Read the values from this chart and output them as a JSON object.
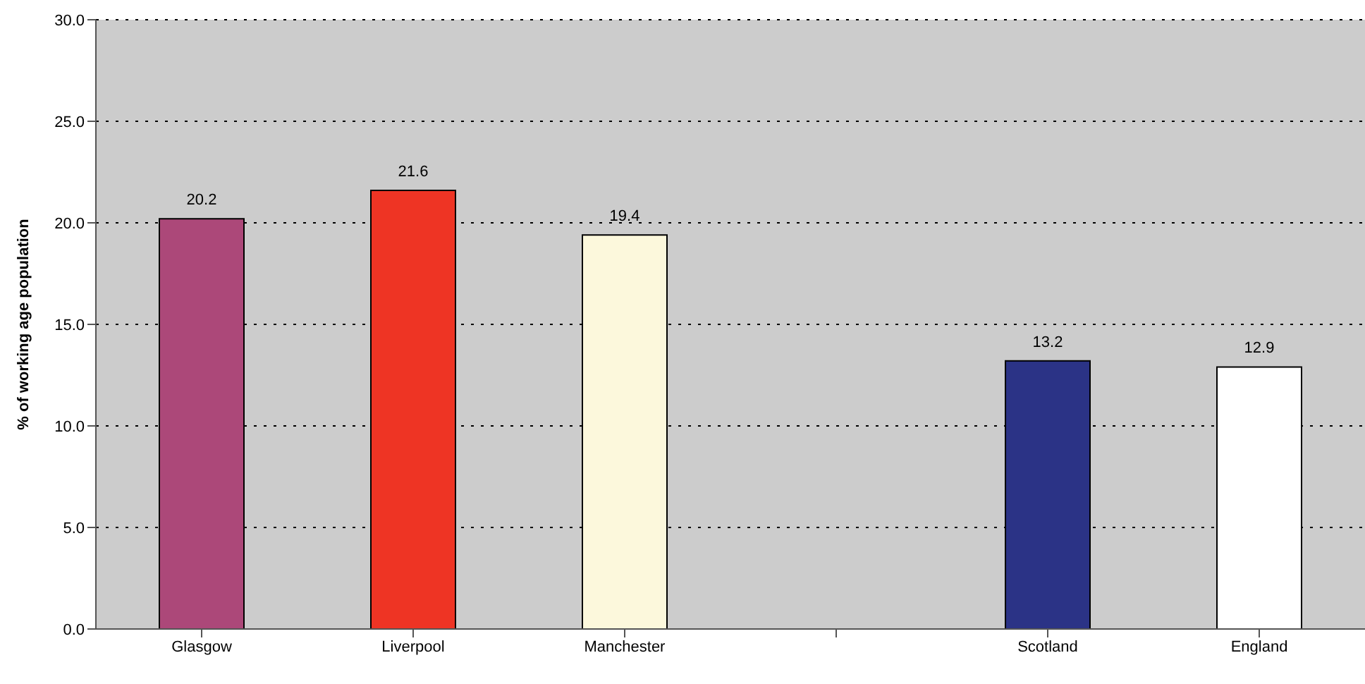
{
  "chart_data": {
    "type": "bar",
    "ylabel": "% of working age population",
    "categories": [
      "Glasgow",
      "Liverpool",
      "Manchester",
      null,
      "Scotland",
      "England"
    ],
    "values": [
      20.2,
      21.6,
      19.4,
      null,
      13.2,
      12.9
    ],
    "colors": [
      "#ac4879",
      "#ee3424",
      "#fcf8dc",
      "#cccccc",
      "#2b3386",
      "#ffffff"
    ],
    "ylim": [
      0,
      30
    ],
    "yticks": [
      {
        "value": 0,
        "label": "0.0"
      },
      {
        "value": 5,
        "label": "5.0"
      },
      {
        "value": 10,
        "label": "10.0"
      },
      {
        "value": 15,
        "label": "15.0"
      },
      {
        "value": 20,
        "label": "20.0"
      },
      {
        "value": 25,
        "label": "25.0"
      },
      {
        "value": 30,
        "label": "30.0"
      }
    ],
    "grid": "y",
    "data_labels": true
  }
}
